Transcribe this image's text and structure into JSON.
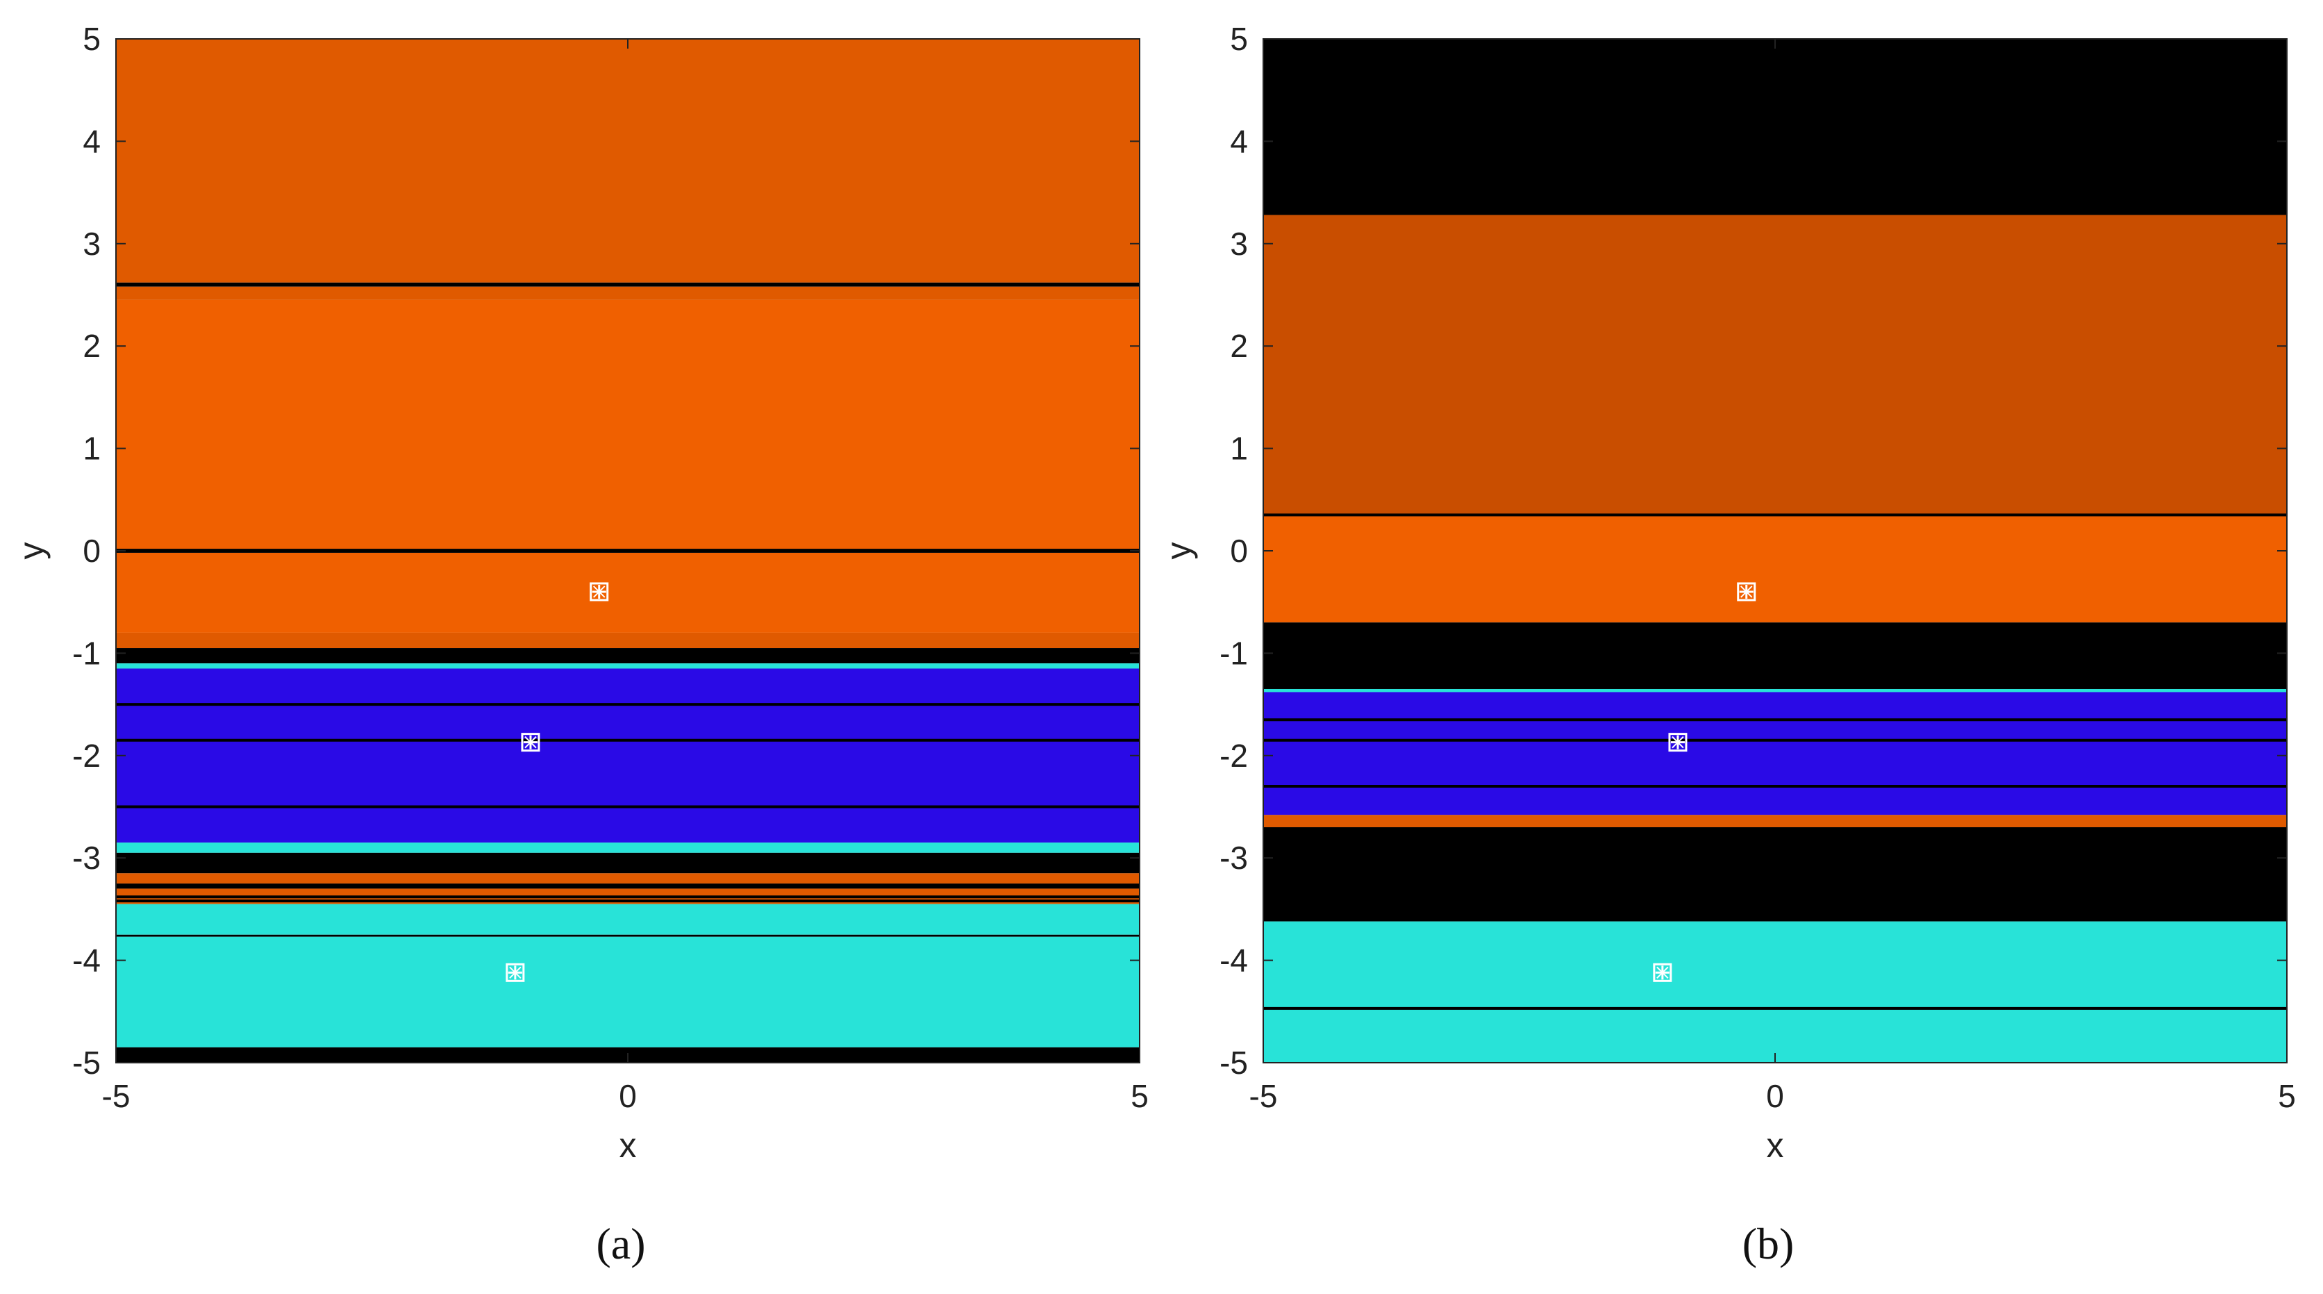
{
  "colors": {
    "orange": "#e05a00",
    "orange_dark": "#c94e00",
    "orange_bright": "#f06000",
    "blue": "#2a0ae6",
    "cyan": "#28e3d8",
    "black": "#000000",
    "marker": "#ffffff"
  },
  "chart_data": [
    {
      "type": "heatmap",
      "panel_label": "(a)",
      "xlabel": "x",
      "ylabel": "y",
      "xlim": [
        -5,
        5
      ],
      "ylim": [
        -5,
        5
      ],
      "xticks": [
        "-5",
        "0",
        "5"
      ],
      "yticks": [
        "5",
        "4",
        "3",
        "2",
        "1",
        "0",
        "-1",
        "-2",
        "-3",
        "-4",
        "-5"
      ],
      "grid": false,
      "bands": [
        {
          "y0": 2.62,
          "y1": 5.0,
          "color": "orange"
        },
        {
          "y0": 2.58,
          "y1": 2.62,
          "color": "black"
        },
        {
          "y0": 2.45,
          "y1": 2.58,
          "color": "orange"
        },
        {
          "y0": 0.02,
          "y1": 2.45,
          "color": "orange_bright"
        },
        {
          "y0": -0.02,
          "y1": 0.02,
          "color": "black"
        },
        {
          "y0": -0.8,
          "y1": -0.02,
          "color": "orange_bright"
        },
        {
          "y0": -0.95,
          "y1": -0.8,
          "color": "orange"
        },
        {
          "y0": -1.1,
          "y1": -0.95,
          "color": "black"
        },
        {
          "y0": -1.15,
          "y1": -1.1,
          "color": "cyan"
        },
        {
          "y0": -2.85,
          "y1": -1.15,
          "color": "blue"
        },
        {
          "y0": -2.95,
          "y1": -2.85,
          "color": "cyan"
        },
        {
          "y0": -3.15,
          "y1": -2.95,
          "color": "black"
        },
        {
          "y0": -3.25,
          "y1": -3.15,
          "color": "orange"
        },
        {
          "y0": -3.3,
          "y1": -3.25,
          "color": "black"
        },
        {
          "y0": -3.45,
          "y1": -3.3,
          "color": "orange"
        },
        {
          "y0": -3.75,
          "y1": -3.45,
          "color": "cyan"
        },
        {
          "y0": -3.77,
          "y1": -3.75,
          "color": "black"
        },
        {
          "y0": -4.85,
          "y1": -3.77,
          "color": "cyan"
        },
        {
          "y0": -5.0,
          "y1": -4.85,
          "color": "black"
        }
      ],
      "lines": [
        -1.85,
        -2.5,
        -1.5,
        -3.38,
        -3.42
      ],
      "markers": [
        {
          "x": -0.28,
          "y": -0.4
        },
        {
          "x": -0.95,
          "y": -1.87
        },
        {
          "x": -1.1,
          "y": -4.12
        }
      ]
    },
    {
      "type": "heatmap",
      "panel_label": "(b)",
      "xlabel": "x",
      "ylabel": "y",
      "xlim": [
        -5,
        5
      ],
      "ylim": [
        -5,
        5
      ],
      "xticks": [
        "-5",
        "0",
        "5"
      ],
      "yticks": [
        "5",
        "4",
        "3",
        "2",
        "1",
        "0",
        "-1",
        "-2",
        "-3",
        "-4",
        "-5"
      ],
      "grid": false,
      "bands": [
        {
          "y0": 3.28,
          "y1": 5.0,
          "color": "black"
        },
        {
          "y0": 0.35,
          "y1": 3.28,
          "color": "orange_dark"
        },
        {
          "y0": -0.7,
          "y1": 0.35,
          "color": "orange_bright"
        },
        {
          "y0": -1.35,
          "y1": -0.7,
          "color": "black"
        },
        {
          "y0": -1.38,
          "y1": -1.35,
          "color": "cyan"
        },
        {
          "y0": -2.58,
          "y1": -1.38,
          "color": "blue"
        },
        {
          "y0": -2.7,
          "y1": -2.58,
          "color": "orange"
        },
        {
          "y0": -3.62,
          "y1": -2.7,
          "color": "black"
        },
        {
          "y0": -5.0,
          "y1": -3.62,
          "color": "cyan"
        }
      ],
      "lines": [
        0.35,
        -1.65,
        -1.85,
        -2.3,
        -4.47
      ],
      "markers": [
        {
          "x": -0.28,
          "y": -0.4
        },
        {
          "x": -0.95,
          "y": -1.87
        },
        {
          "x": -1.1,
          "y": -4.12
        }
      ]
    }
  ]
}
